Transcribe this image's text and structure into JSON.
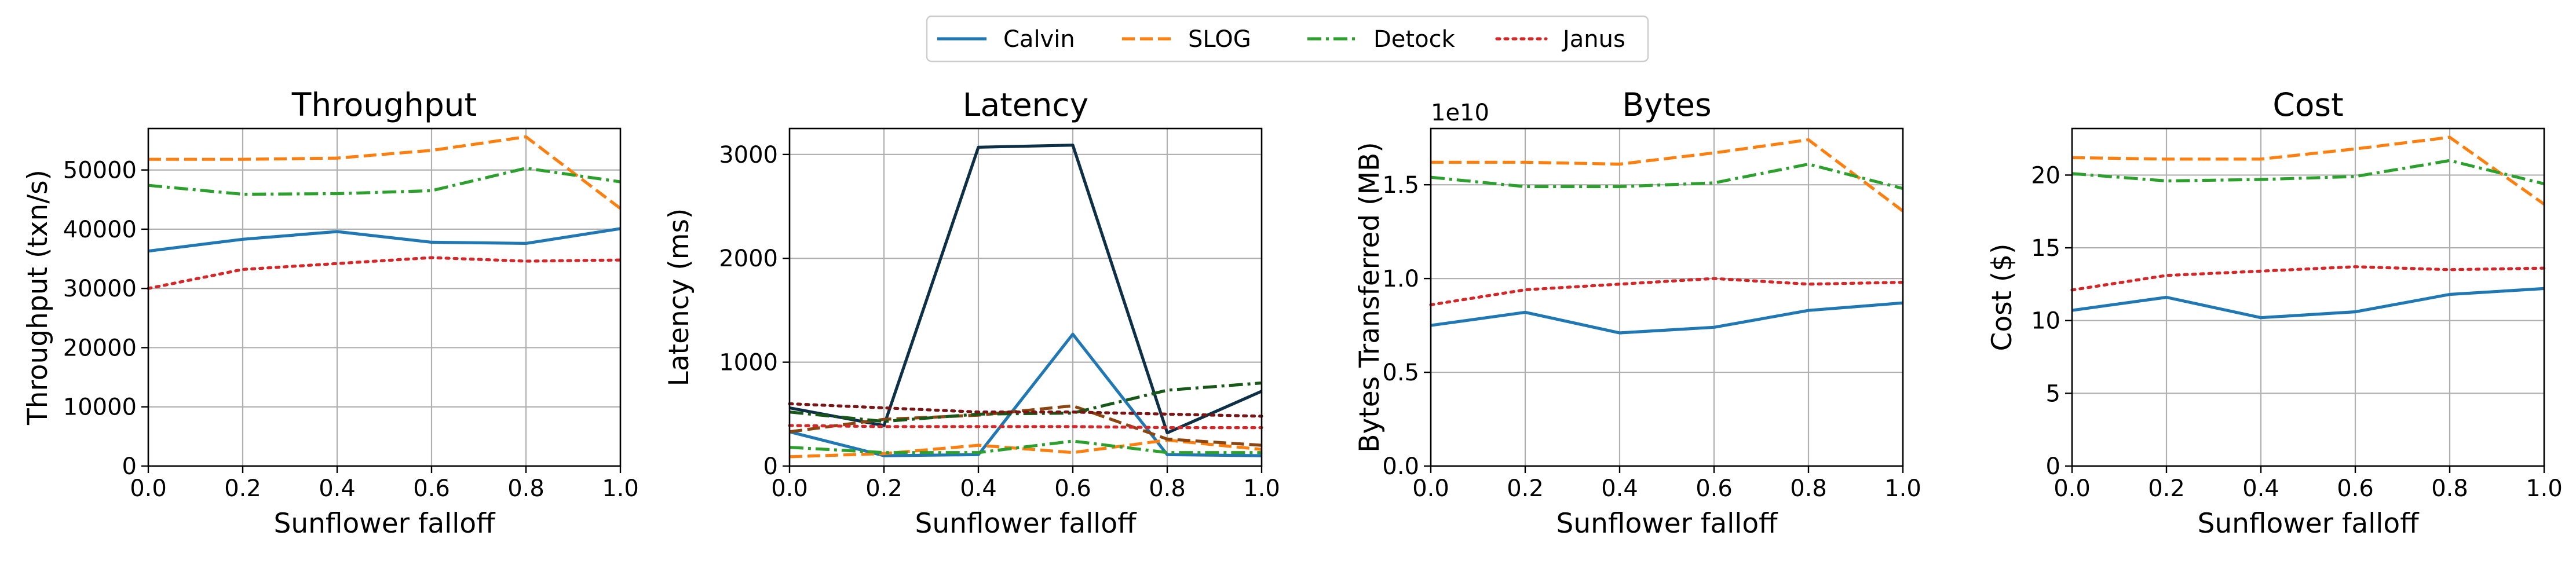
{
  "legend": {
    "placement": "top-center",
    "entries": [
      {
        "name": "Calvin",
        "color": "#1f77b4",
        "dash": "solid"
      },
      {
        "name": "SLOG",
        "color": "#ff7f0e",
        "dash": "dashed"
      },
      {
        "name": "Detock",
        "color": "#2ca02c",
        "dash": "dashdot"
      },
      {
        "name": "Janus",
        "color": "#d62728",
        "dash": "dotted"
      }
    ]
  },
  "chart_data": [
    {
      "type": "line",
      "title": "Throughput",
      "xlabel": "Sunflower falloff",
      "ylabel": "Throughput (txn/s)",
      "x": [
        0.0,
        0.2,
        0.4,
        0.6,
        0.8,
        1.0
      ],
      "xlim": [
        0.0,
        1.0
      ],
      "ylim": [
        0,
        57000
      ],
      "xticks": [
        "0.0",
        "0.2",
        "0.4",
        "0.6",
        "0.8",
        "1.0"
      ],
      "yticks": [
        {
          "v": 0,
          "label": "0"
        },
        {
          "v": 10000,
          "label": "10000"
        },
        {
          "v": 20000,
          "label": "20000"
        },
        {
          "v": 30000,
          "label": "30000"
        },
        {
          "v": 40000,
          "label": "40000"
        },
        {
          "v": 50000,
          "label": "50000"
        }
      ],
      "grid": true,
      "series": [
        {
          "name": "Calvin",
          "color": "#1f77b4",
          "dash": "solid",
          "values": [
            36300,
            38300,
            39600,
            37800,
            37600,
            40100
          ]
        },
        {
          "name": "SLOG",
          "color": "#ff7f0e",
          "dash": "dashed",
          "values": [
            51800,
            51800,
            52000,
            53300,
            55600,
            43500
          ]
        },
        {
          "name": "Detock",
          "color": "#2ca02c",
          "dash": "dashdot",
          "values": [
            47400,
            45900,
            46000,
            46500,
            50300,
            48000
          ]
        },
        {
          "name": "Janus",
          "color": "#d62728",
          "dash": "dotted",
          "values": [
            30000,
            33200,
            34200,
            35200,
            34600,
            34800
          ]
        }
      ]
    },
    {
      "type": "line",
      "title": "Latency",
      "xlabel": "Sunflower falloff",
      "ylabel": "Latency (ms)",
      "x": [
        0.0,
        0.2,
        0.4,
        0.6,
        0.8,
        1.0
      ],
      "xlim": [
        0.0,
        1.0
      ],
      "ylim": [
        0,
        3250
      ],
      "xticks": [
        "0.0",
        "0.2",
        "0.4",
        "0.6",
        "0.8",
        "1.0"
      ],
      "yticks": [
        {
          "v": 0,
          "label": "0"
        },
        {
          "v": 1000,
          "label": "1000"
        },
        {
          "v": 2000,
          "label": "2000"
        },
        {
          "v": 3000,
          "label": "3000"
        }
      ],
      "grid": true,
      "series": [
        {
          "name": "Calvin",
          "color": "#1f77b4",
          "dash": "solid",
          "values": [
            330,
            100,
            110,
            1270,
            110,
            100
          ]
        },
        {
          "color": "#0d3047",
          "dash": "solid",
          "values": [
            560,
            390,
            3070,
            3090,
            320,
            720
          ]
        },
        {
          "name": "SLOG",
          "color": "#ff7f0e",
          "dash": "dashed",
          "values": [
            90,
            120,
            200,
            130,
            250,
            160
          ]
        },
        {
          "color": "#8a4510",
          "dash": "dashed",
          "values": [
            330,
            450,
            490,
            580,
            260,
            200
          ]
        },
        {
          "name": "Detock",
          "color": "#2ca02c",
          "dash": "dashdot",
          "values": [
            180,
            130,
            130,
            240,
            130,
            130
          ]
        },
        {
          "color": "#175717",
          "dash": "dashdot",
          "values": [
            520,
            430,
            500,
            510,
            730,
            800
          ]
        },
        {
          "name": "Janus",
          "color": "#d62728",
          "dash": "dotted",
          "values": [
            390,
            380,
            380,
            380,
            370,
            370
          ]
        },
        {
          "color": "#7a1515",
          "dash": "dotted",
          "values": [
            600,
            560,
            520,
            520,
            500,
            480
          ]
        }
      ]
    },
    {
      "type": "line",
      "title": "Bytes",
      "xlabel": "Sunflower falloff",
      "ylabel": "Bytes Transferred (MB)",
      "offset_label": "1e10",
      "x": [
        0.0,
        0.2,
        0.4,
        0.6,
        0.8,
        1.0
      ],
      "xlim": [
        0.0,
        1.0
      ],
      "ylim": [
        0,
        1.8
      ],
      "xticks": [
        "0.0",
        "0.2",
        "0.4",
        "0.6",
        "0.8",
        "1.0"
      ],
      "yticks": [
        {
          "v": 0,
          "label": "0.0"
        },
        {
          "v": 0.5,
          "label": "0.5"
        },
        {
          "v": 1.0,
          "label": "1.0"
        },
        {
          "v": 1.5,
          "label": "1.5"
        }
      ],
      "grid": true,
      "series": [
        {
          "name": "Calvin",
          "color": "#1f77b4",
          "dash": "solid",
          "values": [
            0.75,
            0.82,
            0.71,
            0.74,
            0.83,
            0.87
          ]
        },
        {
          "name": "SLOG",
          "color": "#ff7f0e",
          "dash": "dashed",
          "values": [
            1.62,
            1.62,
            1.61,
            1.67,
            1.74,
            1.36
          ]
        },
        {
          "name": "Detock",
          "color": "#2ca02c",
          "dash": "dashdot",
          "values": [
            1.54,
            1.49,
            1.49,
            1.51,
            1.61,
            1.48
          ]
        },
        {
          "name": "Janus",
          "color": "#d62728",
          "dash": "dotted",
          "values": [
            0.86,
            0.94,
            0.97,
            1.0,
            0.97,
            0.98
          ]
        }
      ]
    },
    {
      "type": "line",
      "title": "Cost",
      "xlabel": "Sunflower falloff",
      "ylabel": "Cost ($)",
      "x": [
        0.0,
        0.2,
        0.4,
        0.6,
        0.8,
        1.0
      ],
      "xlim": [
        0.0,
        1.0
      ],
      "ylim": [
        0,
        23.2
      ],
      "xticks": [
        "0.0",
        "0.2",
        "0.4",
        "0.6",
        "0.8",
        "1.0"
      ],
      "yticks": [
        {
          "v": 0,
          "label": "0"
        },
        {
          "v": 5,
          "label": "5"
        },
        {
          "v": 10,
          "label": "10"
        },
        {
          "v": 15,
          "label": "15"
        },
        {
          "v": 20,
          "label": "20"
        }
      ],
      "grid": true,
      "series": [
        {
          "name": "Calvin",
          "color": "#1f77b4",
          "dash": "solid",
          "values": [
            10.7,
            11.6,
            10.2,
            10.6,
            11.8,
            12.2
          ]
        },
        {
          "name": "SLOG",
          "color": "#ff7f0e",
          "dash": "dashed",
          "values": [
            21.2,
            21.1,
            21.1,
            21.8,
            22.6,
            18.0
          ]
        },
        {
          "name": "Detock",
          "color": "#2ca02c",
          "dash": "dashdot",
          "values": [
            20.1,
            19.6,
            19.7,
            19.9,
            21.0,
            19.4
          ]
        },
        {
          "name": "Janus",
          "color": "#d62728",
          "dash": "dotted",
          "values": [
            12.1,
            13.1,
            13.4,
            13.7,
            13.5,
            13.6
          ]
        }
      ]
    }
  ]
}
